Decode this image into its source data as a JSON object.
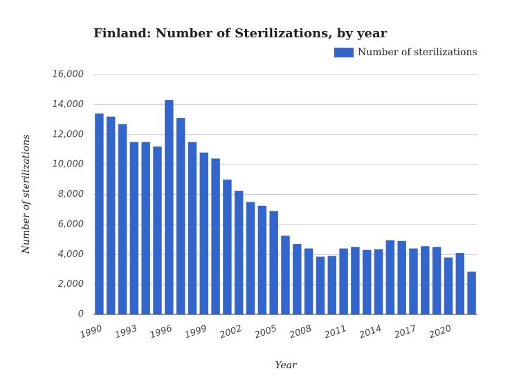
{
  "chart_data": {
    "type": "bar",
    "title": "Finland: Number of Sterilizations, by year",
    "x_label": "Year",
    "y_label": "Number of sterilizations",
    "categories": [
      "1990",
      null,
      null,
      "1993",
      null,
      null,
      "1996",
      null,
      null,
      "1999",
      null,
      null,
      "2002",
      null,
      null,
      "2005",
      null,
      null,
      "2008",
      null,
      null,
      "2011",
      null,
      null,
      "2014",
      null,
      null,
      "2017",
      null,
      null,
      "2020",
      null,
      null
    ],
    "series": [
      {
        "name": "Number of sterilizations",
        "color": "#3366cc",
        "values": [
          13400,
          13200,
          12700,
          11500,
          11500,
          11200,
          14300,
          13100,
          11500,
          10800,
          10400,
          9000,
          8250,
          7500,
          7250,
          6900,
          5250,
          4700,
          4400,
          3850,
          3900,
          4400,
          4500,
          4300,
          4350,
          4950,
          4900,
          4400,
          4550,
          4500,
          3800,
          4100,
          2850
        ]
      }
    ],
    "ylim": [
      0,
      16000
    ],
    "yticks": [
      0,
      {
        "value": 2000,
        "label": "2,000"
      },
      {
        "value": 4000,
        "label": "4,000"
      },
      {
        "value": 6000,
        "label": "6,000"
      },
      {
        "value": 8000,
        "label": "8,000"
      },
      {
        "value": 10000,
        "label": "10,000"
      },
      {
        "value": 12000,
        "label": "12,000"
      },
      {
        "value": 14000,
        "label": "14,000"
      },
      {
        "value": 16000,
        "label": "16,000"
      }
    ],
    "grid": true,
    "legend": "top-right"
  }
}
